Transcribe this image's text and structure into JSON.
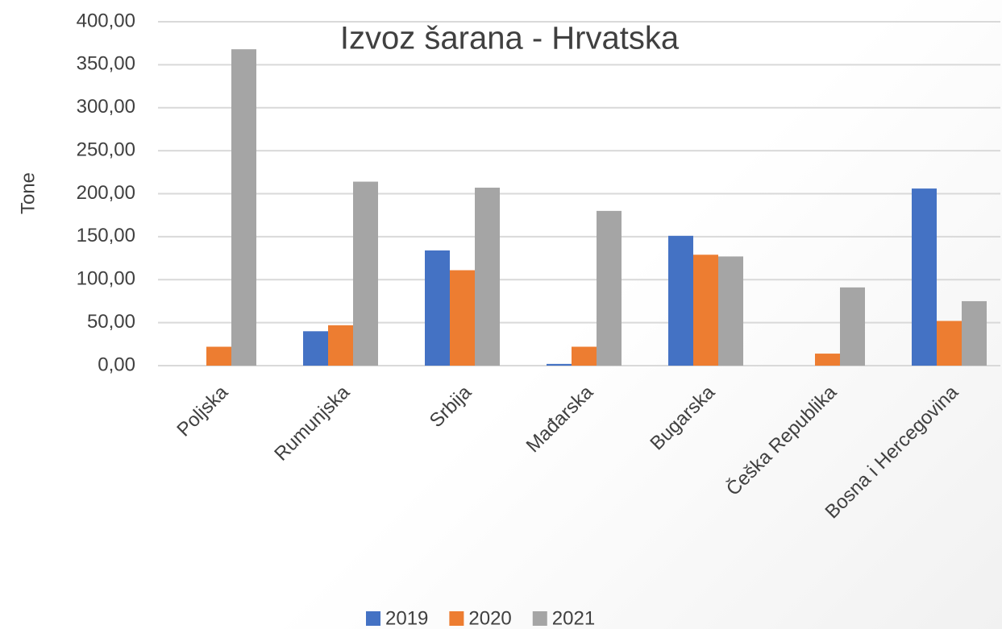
{
  "chart_data": {
    "type": "bar",
    "title": "Izvoz šarana - Hrvatska",
    "y_label": "Tone",
    "categories": [
      "Poljska",
      "Rumunjska",
      "Srbija",
      "Mađarska",
      "Bugarska",
      "Češka Republika",
      "Bosna i Hercegovina"
    ],
    "series": [
      {
        "name": "2019",
        "color": "#4472c4",
        "values": [
          0,
          40,
          134,
          2,
          151,
          0,
          206
        ]
      },
      {
        "name": "2020",
        "color": "#ed7d31",
        "values": [
          22,
          47,
          111,
          22,
          129,
          14,
          52
        ]
      },
      {
        "name": "2021",
        "color": "#a5a5a5",
        "values": [
          368,
          214,
          207,
          180,
          127,
          91,
          75
        ]
      }
    ],
    "ylim": [
      0,
      400
    ],
    "yticks": [
      {
        "value": 0,
        "label": "0,00"
      },
      {
        "value": 50,
        "label": "50,00"
      },
      {
        "value": 100,
        "label": "100,00"
      },
      {
        "value": 150,
        "label": "150,00"
      },
      {
        "value": 200,
        "label": "200,00"
      },
      {
        "value": 250,
        "label": "250,00"
      },
      {
        "value": 300,
        "label": "300,00"
      },
      {
        "value": 350,
        "label": "350,00"
      },
      {
        "value": 400,
        "label": "400,00"
      }
    ],
    "grid": true,
    "legend": "bottom"
  }
}
